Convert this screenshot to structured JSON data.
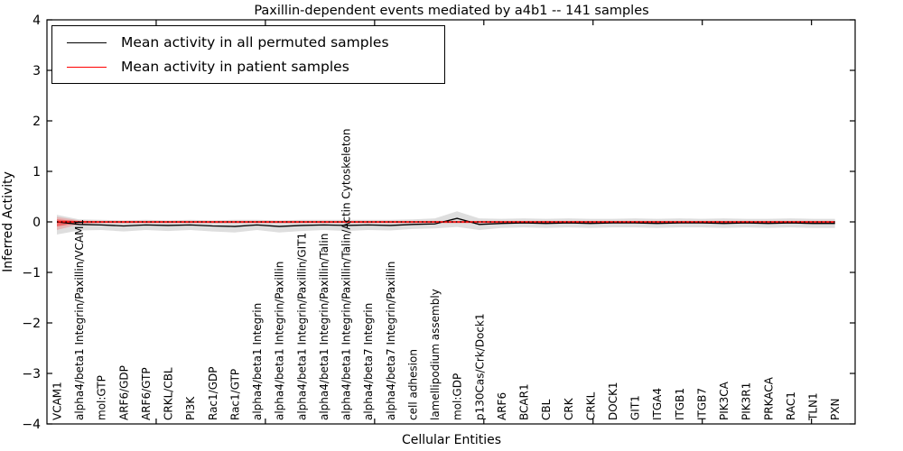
{
  "figure": {
    "background": "#ffffff",
    "frame_color": "#000000"
  },
  "chart_data": {
    "type": "line",
    "title": "Paxillin-dependent events mediated by a4b1 -- 141 samples",
    "xlabel": "Cellular Entities",
    "ylabel": "Inferred Activity",
    "ylim": [
      -4,
      4
    ],
    "yticks": [
      4,
      3,
      2,
      1,
      0,
      -1,
      -2,
      -3,
      -4
    ],
    "grid": false,
    "legend_position": "upper left",
    "x_label_rotation": 90,
    "categories": [
      "VCAM1",
      "alpha4/beta1 Integrin/Paxillin/VCAM1",
      "mol:GTP",
      "ARF6/GDP",
      "ARF6/GTP",
      "CRKL/CBL",
      "PI3K",
      "Rac1/GDP",
      "Rac1/GTP",
      "alpha4/beta1 Integrin",
      "alpha4/beta1 Integrin/Paxillin",
      "alpha4/beta1 Integrin/Paxillin/GIT1",
      "alpha4/beta1 Integrin/Paxillin/Talin",
      "alpha4/beta1 Integrin/Paxillin/Talin/Actin Cytoskeleton",
      "alpha4/beta7 Integrin",
      "alpha4/beta7 Integrin/Paxillin",
      "cell adhesion",
      "lamellipodium assembly",
      "mol:GDP",
      "p130Cas/Crk/Dock1",
      "ARF6",
      "BCAR1",
      "CBL",
      "CRK",
      "CRKL",
      "DOCK1",
      "GIT1",
      "ITGA4",
      "ITGB1",
      "ITGB7",
      "PIK3CA",
      "PIK3R1",
      "PRKACA",
      "RAC1",
      "TLN1",
      "PXN"
    ],
    "series": [
      {
        "name": "Mean activity in all permuted samples",
        "color": "#000000",
        "values": [
          0.0,
          -0.05,
          -0.06,
          -0.08,
          -0.06,
          -0.07,
          -0.06,
          -0.08,
          -0.09,
          -0.06,
          -0.09,
          -0.07,
          -0.06,
          -0.07,
          -0.06,
          -0.07,
          -0.05,
          -0.04,
          0.07,
          -0.05,
          -0.03,
          -0.02,
          -0.03,
          -0.02,
          -0.03,
          -0.02,
          -0.02,
          -0.03,
          -0.02,
          -0.02,
          -0.03,
          -0.02,
          -0.03,
          -0.02,
          -0.03,
          -0.03
        ],
        "band_upper": [
          0.14,
          0.05,
          0.04,
          0.03,
          0.04,
          0.03,
          0.04,
          0.03,
          0.04,
          0.04,
          0.03,
          0.04,
          0.04,
          0.04,
          0.04,
          0.04,
          0.05,
          0.07,
          0.21,
          0.07,
          0.06,
          0.07,
          0.06,
          0.07,
          0.06,
          0.06,
          0.07,
          0.06,
          0.07,
          0.06,
          0.07,
          0.06,
          0.06,
          0.07,
          0.06,
          0.06
        ],
        "band_lower": [
          -0.25,
          -0.17,
          -0.16,
          -0.19,
          -0.16,
          -0.18,
          -0.16,
          -0.19,
          -0.21,
          -0.16,
          -0.21,
          -0.18,
          -0.16,
          -0.18,
          -0.16,
          -0.17,
          -0.14,
          -0.13,
          -0.1,
          -0.16,
          -0.12,
          -0.11,
          -0.12,
          -0.11,
          -0.12,
          -0.11,
          -0.11,
          -0.12,
          -0.11,
          -0.11,
          -0.12,
          -0.11,
          -0.12,
          -0.11,
          -0.12,
          -0.12
        ],
        "band_color": "rgba(0,0,0,0.13)"
      },
      {
        "name": "Mean activity in patient samples",
        "color": "#ff0000",
        "values": [
          0,
          0,
          0,
          0,
          0,
          0,
          0,
          0,
          0,
          0,
          0,
          0,
          0,
          0,
          0,
          0,
          0,
          0,
          0,
          0,
          0,
          0,
          0,
          0,
          0,
          0,
          0,
          0,
          0,
          0,
          0,
          0,
          0,
          0,
          0,
          0
        ],
        "band_upper": [
          0.05,
          0.015,
          0.01,
          0.01,
          0.01,
          0.01,
          0.01,
          0.01,
          0.01,
          0.01,
          0.01,
          0.01,
          0.01,
          0.01,
          0.01,
          0.01,
          0.01,
          0.01,
          0.01,
          0.01,
          0.01,
          0.01,
          0.01,
          0.01,
          0.01,
          0.01,
          0.01,
          0.01,
          0.01,
          0.01,
          0.01,
          0.01,
          0.01,
          0.01,
          0.01,
          0.01
        ],
        "band_lower": [
          -0.09,
          -0.02,
          -0.015,
          -0.015,
          -0.015,
          -0.015,
          -0.015,
          -0.015,
          -0.015,
          -0.015,
          -0.015,
          -0.015,
          -0.015,
          -0.015,
          -0.015,
          -0.015,
          -0.015,
          -0.015,
          -0.015,
          -0.015,
          -0.015,
          -0.015,
          -0.015,
          -0.015,
          -0.015,
          -0.015,
          -0.015,
          -0.015,
          -0.015,
          -0.015,
          -0.015,
          -0.015,
          -0.015,
          -0.015,
          -0.015,
          -0.015
        ],
        "band_color": "rgba(255,0,0,0.42)",
        "outer_band_upper": [
          0.1,
          0.03,
          0.02,
          0.02,
          0.02,
          0.02,
          0.02,
          0.02,
          0.02,
          0.02,
          0.02,
          0.02,
          0.02,
          0.02,
          0.02,
          0.02,
          0.02,
          0.02,
          0.02,
          0.02,
          0.02,
          0.02,
          0.02,
          0.02,
          0.02,
          0.02,
          0.02,
          0.02,
          0.02,
          0.02,
          0.02,
          0.02,
          0.02,
          0.02,
          0.02,
          0.02
        ],
        "outer_band_lower": [
          -0.16,
          -0.05,
          -0.03,
          -0.03,
          -0.03,
          -0.03,
          -0.03,
          -0.03,
          -0.03,
          -0.03,
          -0.03,
          -0.03,
          -0.03,
          -0.03,
          -0.03,
          -0.03,
          -0.03,
          -0.03,
          -0.03,
          -0.03,
          -0.03,
          -0.03,
          -0.03,
          -0.03,
          -0.03,
          -0.03,
          -0.03,
          -0.03,
          -0.03,
          -0.03,
          -0.03,
          -0.03,
          -0.03,
          -0.03,
          -0.03,
          -0.03
        ],
        "outer_band_color": "rgba(255,0,0,0.18)"
      }
    ],
    "reference_line": {
      "y": 0,
      "style": "dotted",
      "color": "#000000"
    }
  }
}
